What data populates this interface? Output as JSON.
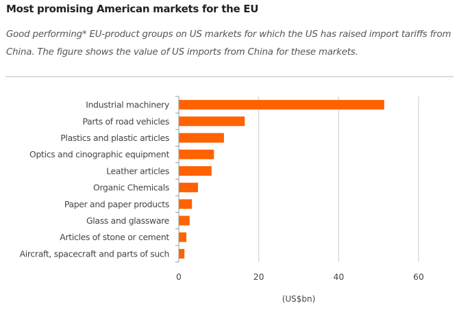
{
  "header": {
    "title": "Most promising American markets for the EU",
    "subtitle": "Good performing* EU-product groups on US markets for which the US has raised import tariffs from China. The figure shows the value of US imports from China for these markets."
  },
  "colors": {
    "bar": "#ff6200",
    "grid": "#c8c8c8",
    "axis": "#999999"
  },
  "chart_data": {
    "type": "bar",
    "orientation": "horizontal",
    "title": "Most promising American markets for the EU",
    "xlabel": "(US$bn)",
    "ylabel": "",
    "xlim": [
      0,
      65
    ],
    "xticks": [
      0,
      20,
      40,
      60
    ],
    "xtick_labels": [
      "0",
      "20",
      "40",
      "60"
    ],
    "grid": true,
    "legend": "none",
    "categories": [
      "Industrial machinery",
      "Parts of road vehicles",
      "Plastics and plastic articles",
      "Optics and cinographic equipment",
      "Leather articles",
      "Organic Chemicals",
      "Paper and paper products",
      "Glass and glassware",
      "Articles of stone or cement",
      "Aircraft, spacecraft and parts of such"
    ],
    "values": [
      51.4,
      16.5,
      11.3,
      8.8,
      8.2,
      4.8,
      3.3,
      2.7,
      1.9,
      1.4
    ]
  }
}
